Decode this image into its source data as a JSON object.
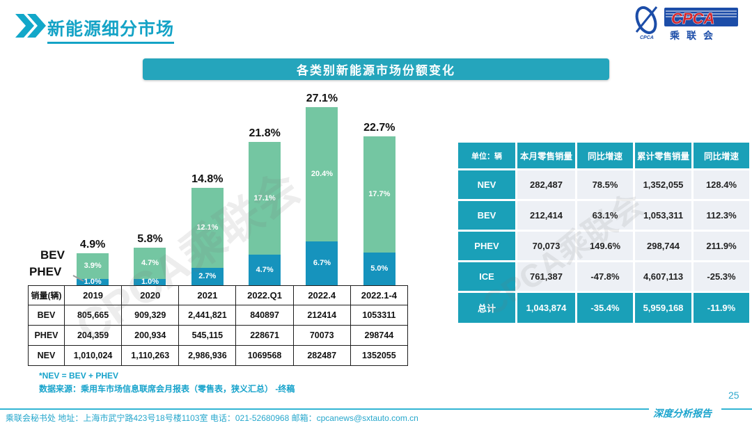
{
  "page": {
    "title": "新能源细分市场",
    "page_number": "25",
    "report_type": "深度分析报告",
    "footer": "乘联会秘书处  地址：上海市武宁路423号18号楼1103室 电话：021-52680968  邮箱：cpcanews@sxtauto.com.cn",
    "watermark": "CPCA乘联会"
  },
  "logo": {
    "acronym": "CPCA",
    "acronym_small": "CPCA",
    "chinese": "乘联会"
  },
  "chart_title": "各类别新能源市场份额变化",
  "chart_data": {
    "type": "bar",
    "stacked": true,
    "title": "各类别新能源市场份额变化",
    "unit": "%",
    "ylim": [
      0,
      28
    ],
    "grid": false,
    "categories": [
      "2019",
      "2020",
      "2021",
      "2022.Q1",
      "2022.4",
      "2022.1-4"
    ],
    "series": [
      {
        "name": "PHEV",
        "color": "#1693bd",
        "values": [
          1.0,
          1.0,
          2.7,
          4.7,
          6.7,
          5.0
        ],
        "labels": [
          "1.0%",
          "1.0%",
          "2.7%",
          "4.7%",
          "6.7%",
          "5.0%"
        ]
      },
      {
        "name": "BEV",
        "color": "#74c6a2",
        "values": [
          3.9,
          4.7,
          12.1,
          17.1,
          20.4,
          17.7
        ],
        "labels": [
          "3.9%",
          "4.7%",
          "12.1%",
          "17.1%",
          "20.4%",
          "17.7%"
        ]
      }
    ],
    "totals": [
      4.9,
      5.8,
      14.8,
      21.8,
      27.1,
      22.7
    ],
    "total_labels": [
      "4.9%",
      "5.8%",
      "14.8%",
      "21.8%",
      "27.1%",
      "22.7%"
    ],
    "legend": {
      "bev": "BEV",
      "phev": "PHEV"
    }
  },
  "sales_table": {
    "corner": "销量(辆)",
    "columns": [
      "2019",
      "2020",
      "2021",
      "2022.Q1",
      "2022.4",
      "2022.1-4"
    ],
    "rows": [
      {
        "label": "BEV",
        "values": [
          "805,665",
          "909,329",
          "2,441,821",
          "840897",
          "212414",
          "1053311"
        ]
      },
      {
        "label": "PHEV",
        "values": [
          "204,359",
          "200,934",
          "545,115",
          "228671",
          "70073",
          "298744"
        ]
      },
      {
        "label": "NEV",
        "values": [
          "1,010,024",
          "1,110,263",
          "2,986,936",
          "1069568",
          "282487",
          "1352055"
        ]
      }
    ]
  },
  "summary_table": {
    "header": [
      "单位：辆",
      "本月零售销量",
      "同比增速",
      "累计零售销量",
      "同比增速"
    ],
    "rows": [
      {
        "label": "NEV",
        "values": [
          "282,487",
          "78.5%",
          "1,352,055",
          "128.4%"
        ],
        "highlight": false
      },
      {
        "label": "BEV",
        "values": [
          "212,414",
          "63.1%",
          "1,053,311",
          "112.3%"
        ],
        "highlight": false
      },
      {
        "label": "PHEV",
        "values": [
          "70,073",
          "149.6%",
          "298,744",
          "211.9%"
        ],
        "highlight": false
      },
      {
        "label": "ICE",
        "values": [
          "761,387",
          "-47.8%",
          "4,607,113",
          "-25.3%"
        ],
        "highlight": false
      },
      {
        "label": "总计",
        "values": [
          "1,043,874",
          "-35.4%",
          "5,959,168",
          "-11.9%"
        ],
        "highlight": true
      }
    ]
  },
  "notes": [
    "*NEV = BEV + PHEV",
    "数据来源：乘用车市场信息联席会月报表（零售表，狭义汇总） -终稿"
  ],
  "colors": {
    "teal": "#1aa0b8",
    "accent_text": "#14a3c6",
    "bar_bev": "#74c6a2",
    "bar_phev": "#1693bd",
    "logo_blue": "#1c4da8",
    "logo_red": "#d2282e"
  }
}
